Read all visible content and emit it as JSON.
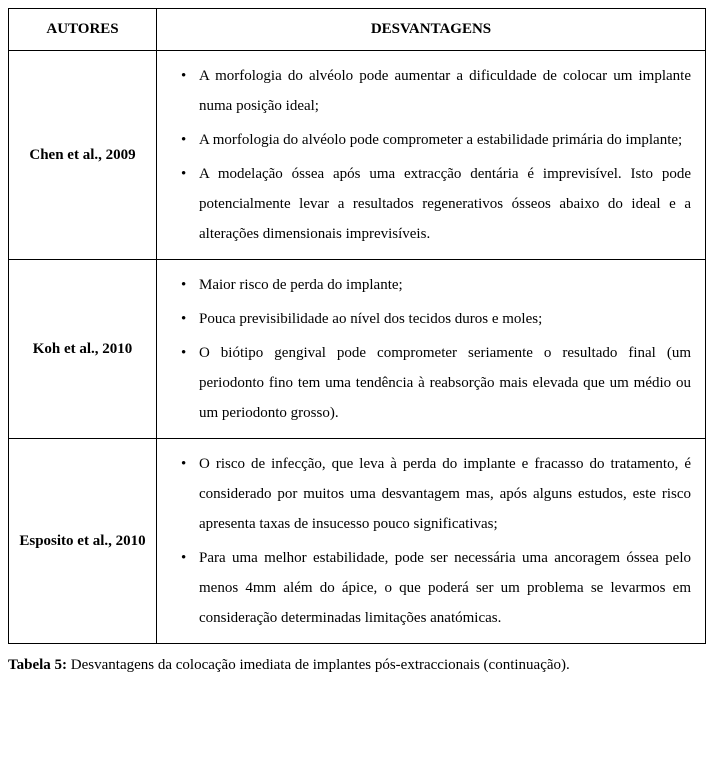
{
  "table": {
    "header": {
      "authors": "AUTORES",
      "disadvantages": "DESVANTAGENS"
    },
    "rows": [
      {
        "author": "Chen et al., 2009",
        "items": [
          "A morfologia do alvéolo pode aumentar a dificuldade de colocar um implante numa posição ideal;",
          "A morfologia do alvéolo pode comprometer a estabilidade primária do implante;",
          "A modelação óssea após uma extracção dentária é imprevisível. Isto pode potencialmente levar a resultados regenerativos ósseos abaixo do ideal e a alterações dimensionais imprevisíveis."
        ]
      },
      {
        "author": "Koh et al., 2010",
        "items": [
          "Maior risco de perda do implante;",
          "Pouca previsibilidade ao nível dos tecidos duros e moles;",
          "O biótipo gengival pode comprometer seriamente o resultado final (um periodonto fino tem uma tendência à reabsorção mais elevada que um médio ou um periodonto grosso)."
        ]
      },
      {
        "author": "Esposito et al., 2010",
        "items": [
          "O risco de infecção, que leva à perda do implante e fracasso do tratamento, é considerado por muitos uma desvantagem mas, após alguns estudos, este risco apresenta taxas de insucesso pouco significativas;",
          "Para uma melhor estabilidade, pode ser necessária uma ancoragem óssea pelo menos 4mm além do ápice, o que poderá ser um problema se levarmos em consideração determinadas limitações anatómicas."
        ]
      }
    ]
  },
  "caption": {
    "label": "Tabela 5:",
    "text": " Desvantagens da colocação imediata de implantes pós-extraccionais (continuação)."
  },
  "style": {
    "row_justify": [
      [
        true,
        true,
        true
      ],
      [
        false,
        false,
        true
      ],
      [
        true,
        true
      ]
    ]
  }
}
